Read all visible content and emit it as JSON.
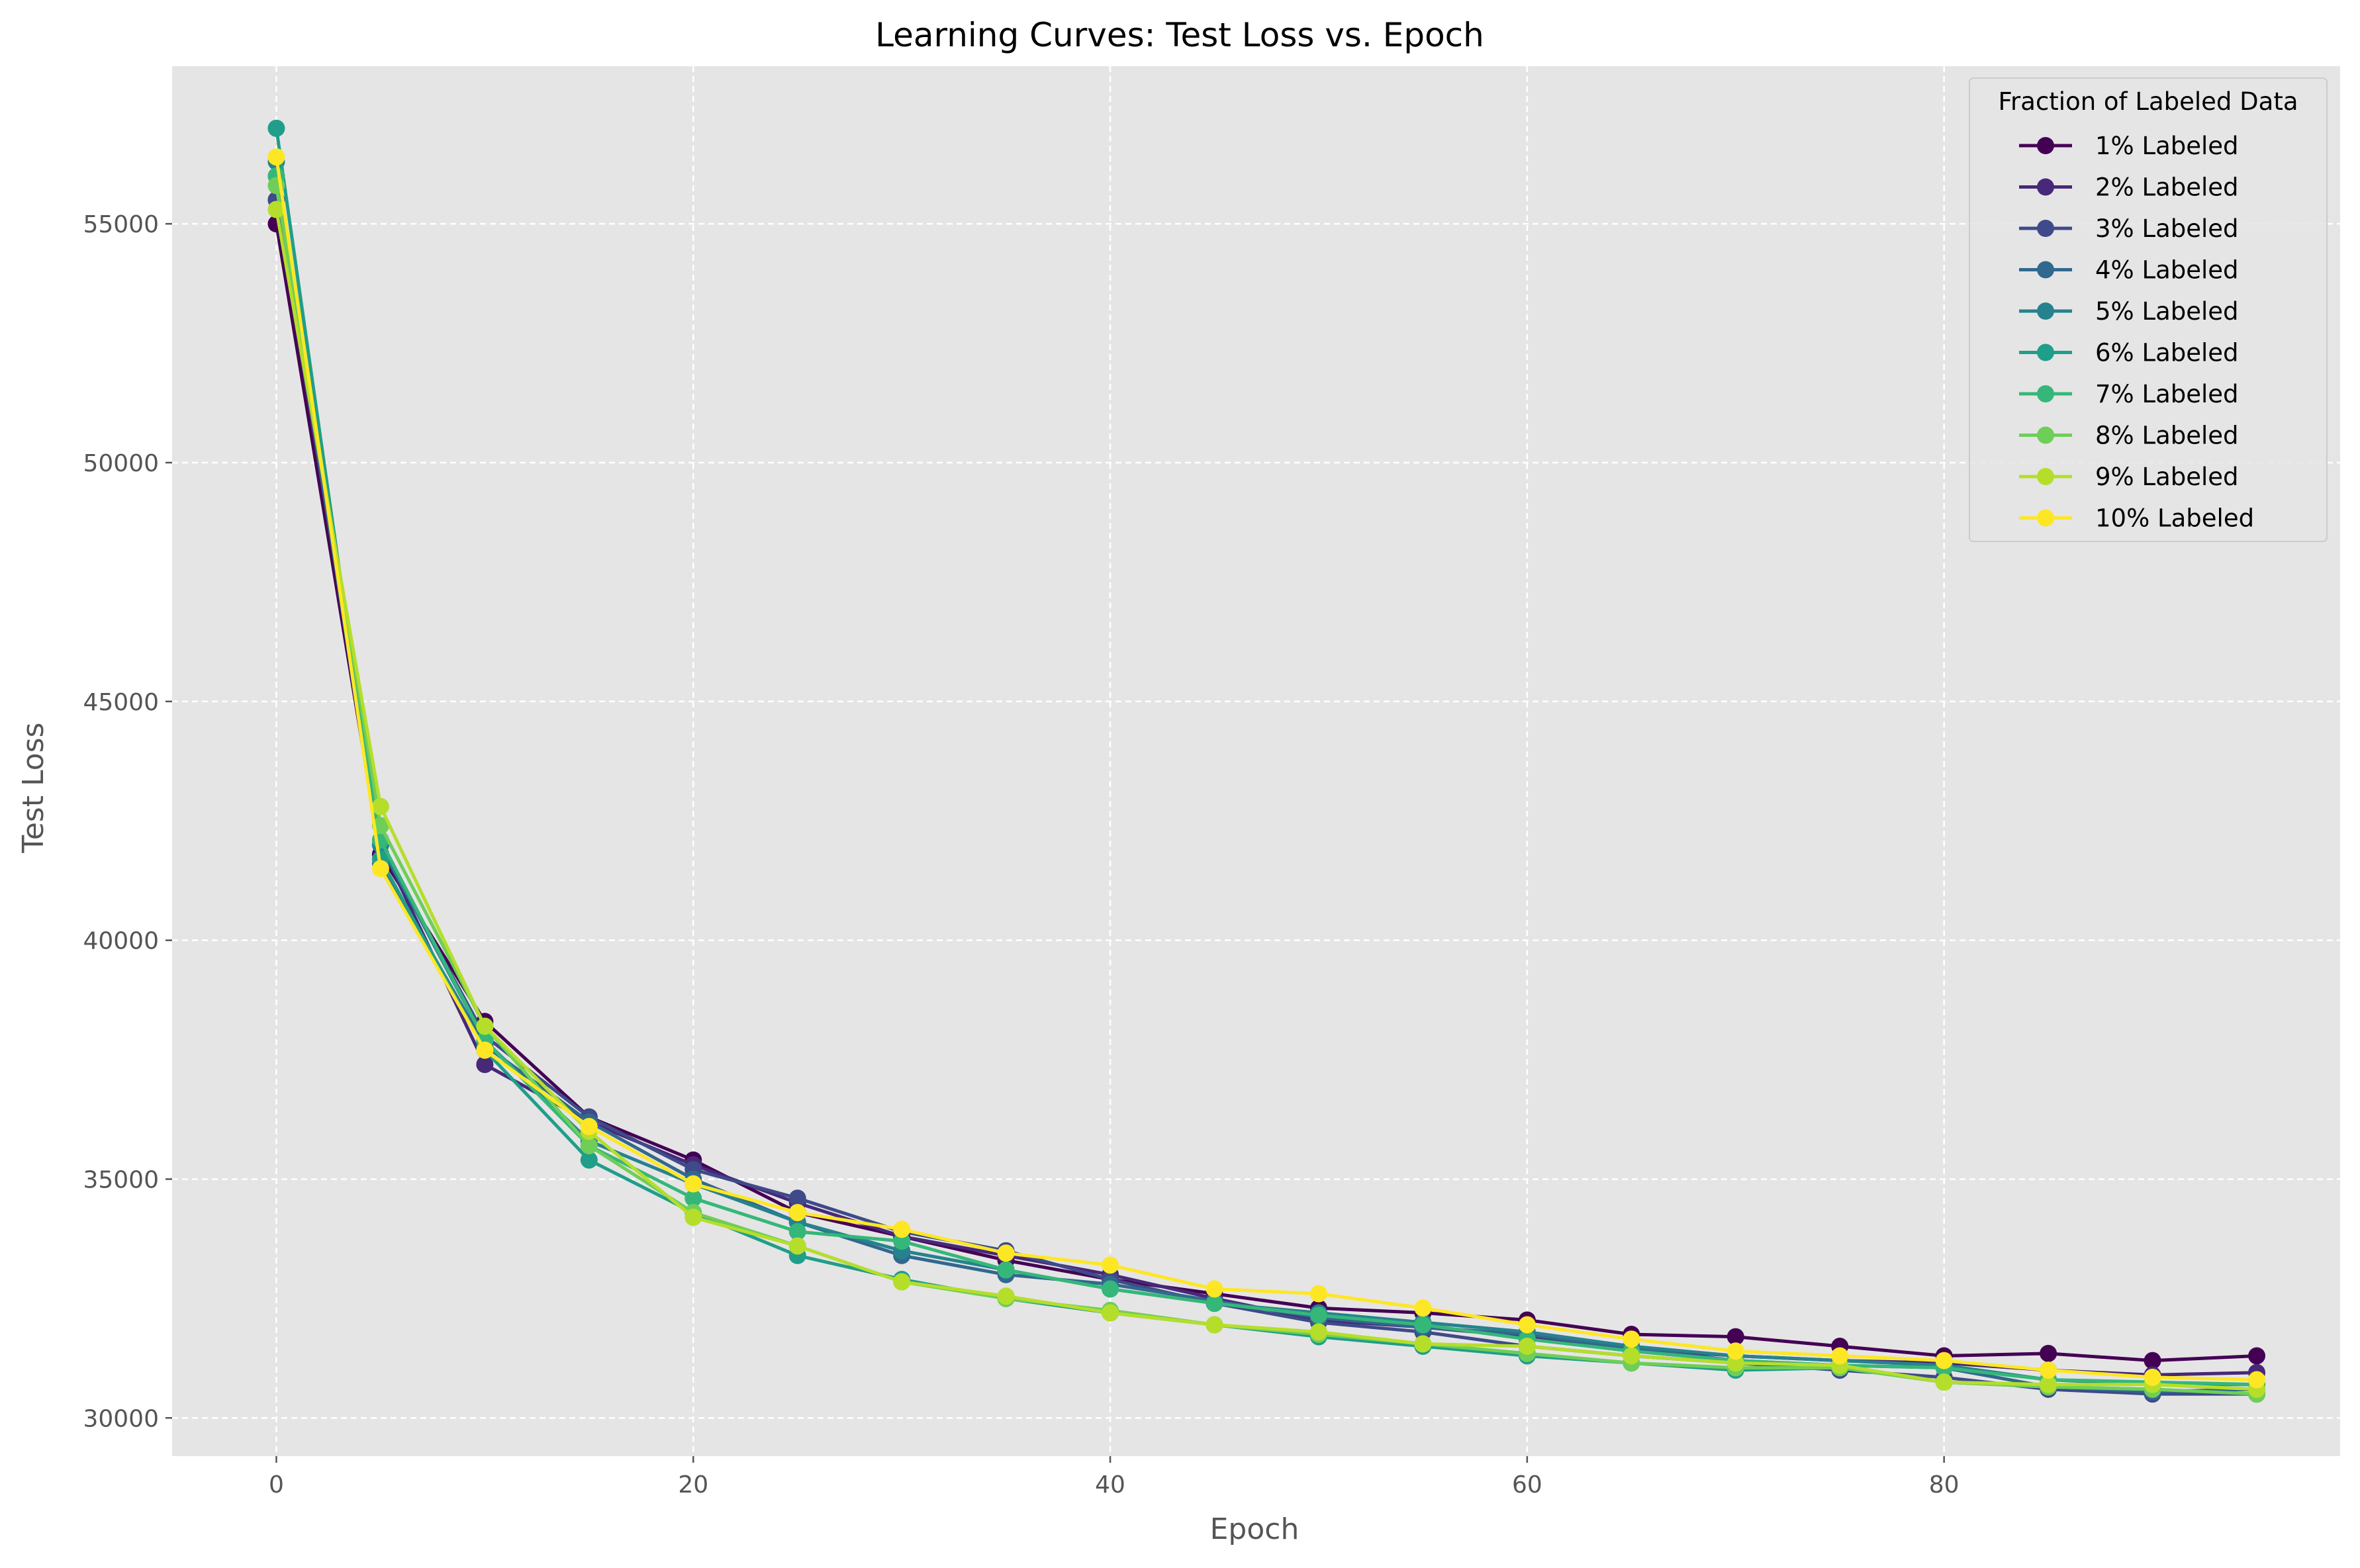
{
  "chart_data": {
    "type": "line",
    "title": "Learning Curves: Test Loss vs. Epoch",
    "xlabel": "Epoch",
    "ylabel": "Test Loss",
    "xlim": [
      -5,
      99
    ],
    "ylim": [
      29200,
      58300
    ],
    "xticks": [
      0,
      20,
      40,
      60,
      80
    ],
    "yticks": [
      30000,
      35000,
      40000,
      45000,
      50000,
      55000
    ],
    "grid": true,
    "legend_title": "Fraction of Labeled Data",
    "legend_position": "top-right",
    "x": [
      0,
      5,
      10,
      15,
      20,
      25,
      30,
      35,
      40,
      45,
      50,
      55,
      60,
      65,
      70,
      75,
      80,
      85,
      90,
      95
    ],
    "series": [
      {
        "name": "1% Labeled",
        "color": "#440154",
        "values": [
          55000,
          41800,
          38300,
          36300,
          35400,
          34300,
          33800,
          33300,
          32900,
          32600,
          32300,
          32200,
          32050,
          31750,
          31700,
          31500,
          31300,
          31350,
          31200,
          31300
        ]
      },
      {
        "name": "2% Labeled",
        "color": "#482878",
        "values": [
          55500,
          42000,
          37400,
          36200,
          35300,
          34500,
          33800,
          33400,
          33000,
          32500,
          32050,
          31900,
          31700,
          31450,
          31300,
          31200,
          31150,
          31000,
          30900,
          30950
        ]
      },
      {
        "name": "3% Labeled",
        "color": "#3e4a89",
        "values": [
          55500,
          42000,
          38000,
          36300,
          35200,
          34600,
          33900,
          33500,
          32900,
          32400,
          32000,
          31800,
          31500,
          31300,
          31150,
          31000,
          30850,
          30600,
          30500,
          30500
        ]
      },
      {
        "name": "4% Labeled",
        "color": "#31688e",
        "values": [
          56000,
          41600,
          37800,
          36200,
          35000,
          34100,
          33400,
          33000,
          32800,
          32450,
          32100,
          31900,
          31750,
          31450,
          31200,
          31100,
          31050,
          30650,
          30550,
          30600
        ]
      },
      {
        "name": "5% Labeled",
        "color": "#26828e",
        "values": [
          56300,
          42000,
          37900,
          35800,
          34900,
          34100,
          33500,
          33100,
          32700,
          32400,
          32200,
          32000,
          31800,
          31500,
          31300,
          31200,
          31100,
          30800,
          30700,
          30700
        ]
      },
      {
        "name": "6% Labeled",
        "color": "#1f9e89",
        "values": [
          57000,
          41700,
          37700,
          35400,
          34300,
          33400,
          32900,
          32500,
          32200,
          31950,
          31700,
          31500,
          31300,
          31150,
          31000,
          31050,
          30750,
          30650,
          30600,
          30500
        ]
      },
      {
        "name": "7% Labeled",
        "color": "#35b779",
        "values": [
          56000,
          42100,
          37900,
          35700,
          34600,
          33900,
          33700,
          33100,
          32700,
          32400,
          32150,
          31950,
          31650,
          31400,
          31200,
          31100,
          31050,
          30800,
          30750,
          30700
        ]
      },
      {
        "name": "8% Labeled",
        "color": "#6ece58",
        "values": [
          55800,
          42400,
          38200,
          35700,
          34300,
          33600,
          32850,
          32500,
          32250,
          31950,
          31750,
          31550,
          31350,
          31150,
          31050,
          31050,
          30750,
          30650,
          30600,
          30500
        ]
      },
      {
        "name": "9% Labeled",
        "color": "#b5de2b",
        "values": [
          55300,
          42800,
          38200,
          36000,
          34200,
          33600,
          32850,
          32550,
          32200,
          31950,
          31800,
          31550,
          31500,
          31300,
          31150,
          31100,
          30750,
          30700,
          30700,
          30600
        ]
      },
      {
        "name": "10% Labeled",
        "color": "#fde725",
        "values": [
          56400,
          41500,
          37700,
          36100,
          34900,
          34300,
          33950,
          33450,
          33200,
          32700,
          32600,
          32300,
          31950,
          31650,
          31400,
          31300,
          31200,
          31000,
          30850,
          30800
        ]
      }
    ]
  }
}
